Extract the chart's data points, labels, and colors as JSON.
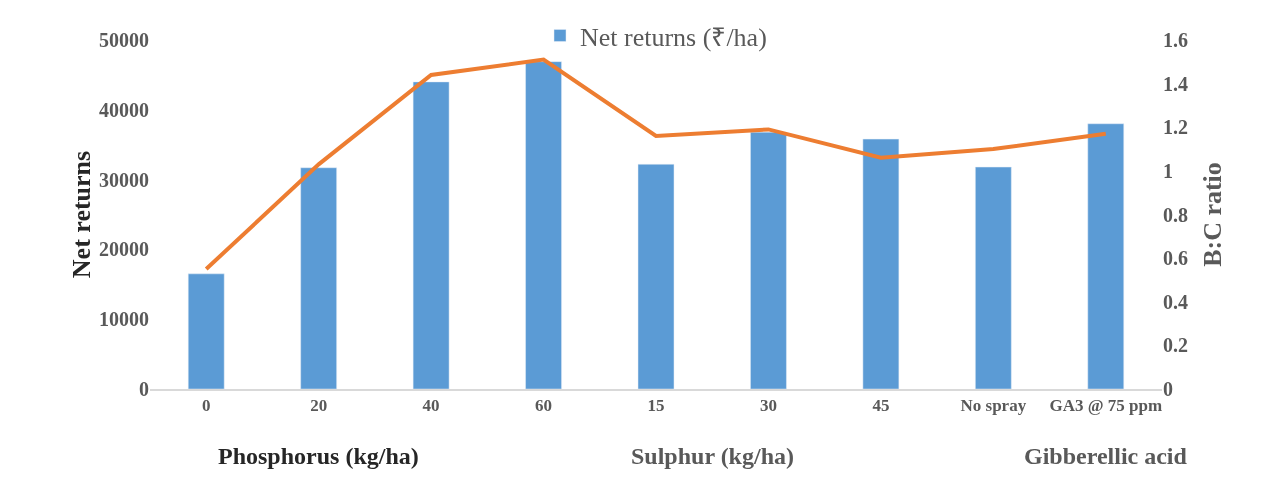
{
  "chart_data": {
    "type": "bar",
    "categories": [
      "0",
      "20",
      "40",
      "60",
      "15",
      "30",
      "45",
      "No spray",
      "GA3 @ 75 ppm"
    ],
    "series": [
      {
        "name": "Net returns (₹/ha)",
        "color": "#5b9bd5",
        "values": [
          16500,
          31700,
          44000,
          46900,
          32200,
          36800,
          35800,
          31800,
          38000
        ]
      },
      {
        "type": "line",
        "axis": "y2",
        "color": "#ed7d31",
        "values": [
          0.55,
          1.03,
          1.44,
          1.51,
          1.16,
          1.19,
          1.06,
          1.1,
          1.17
        ]
      }
    ],
    "ylabel": "Net returns",
    "y2label": "B:C ratio",
    "ylim": [
      0,
      50000
    ],
    "yticks": [
      0,
      10000,
      20000,
      30000,
      40000,
      50000
    ],
    "y2lim": [
      0,
      1.6
    ],
    "y2ticks": [
      0,
      {
        "value": 0.2,
        "label": "0.2"
      },
      {
        "value": 0.4,
        "label": "0.4"
      },
      {
        "value": 0.6,
        "label": "0.6"
      },
      {
        "value": 0.8,
        "label": "0.8"
      },
      1,
      {
        "value": 1.2,
        "label": "1.2"
      },
      {
        "value": 1.4,
        "label": "1.4"
      },
      {
        "value": 1.6,
        "label": "1.6"
      }
    ],
    "annotations": [
      "Phosphorus (kg/ha)",
      "Sulphur (kg/ha)",
      "Gibberellic acid"
    ],
    "legend": "top",
    "marker": "none",
    "line_style": "solid"
  }
}
